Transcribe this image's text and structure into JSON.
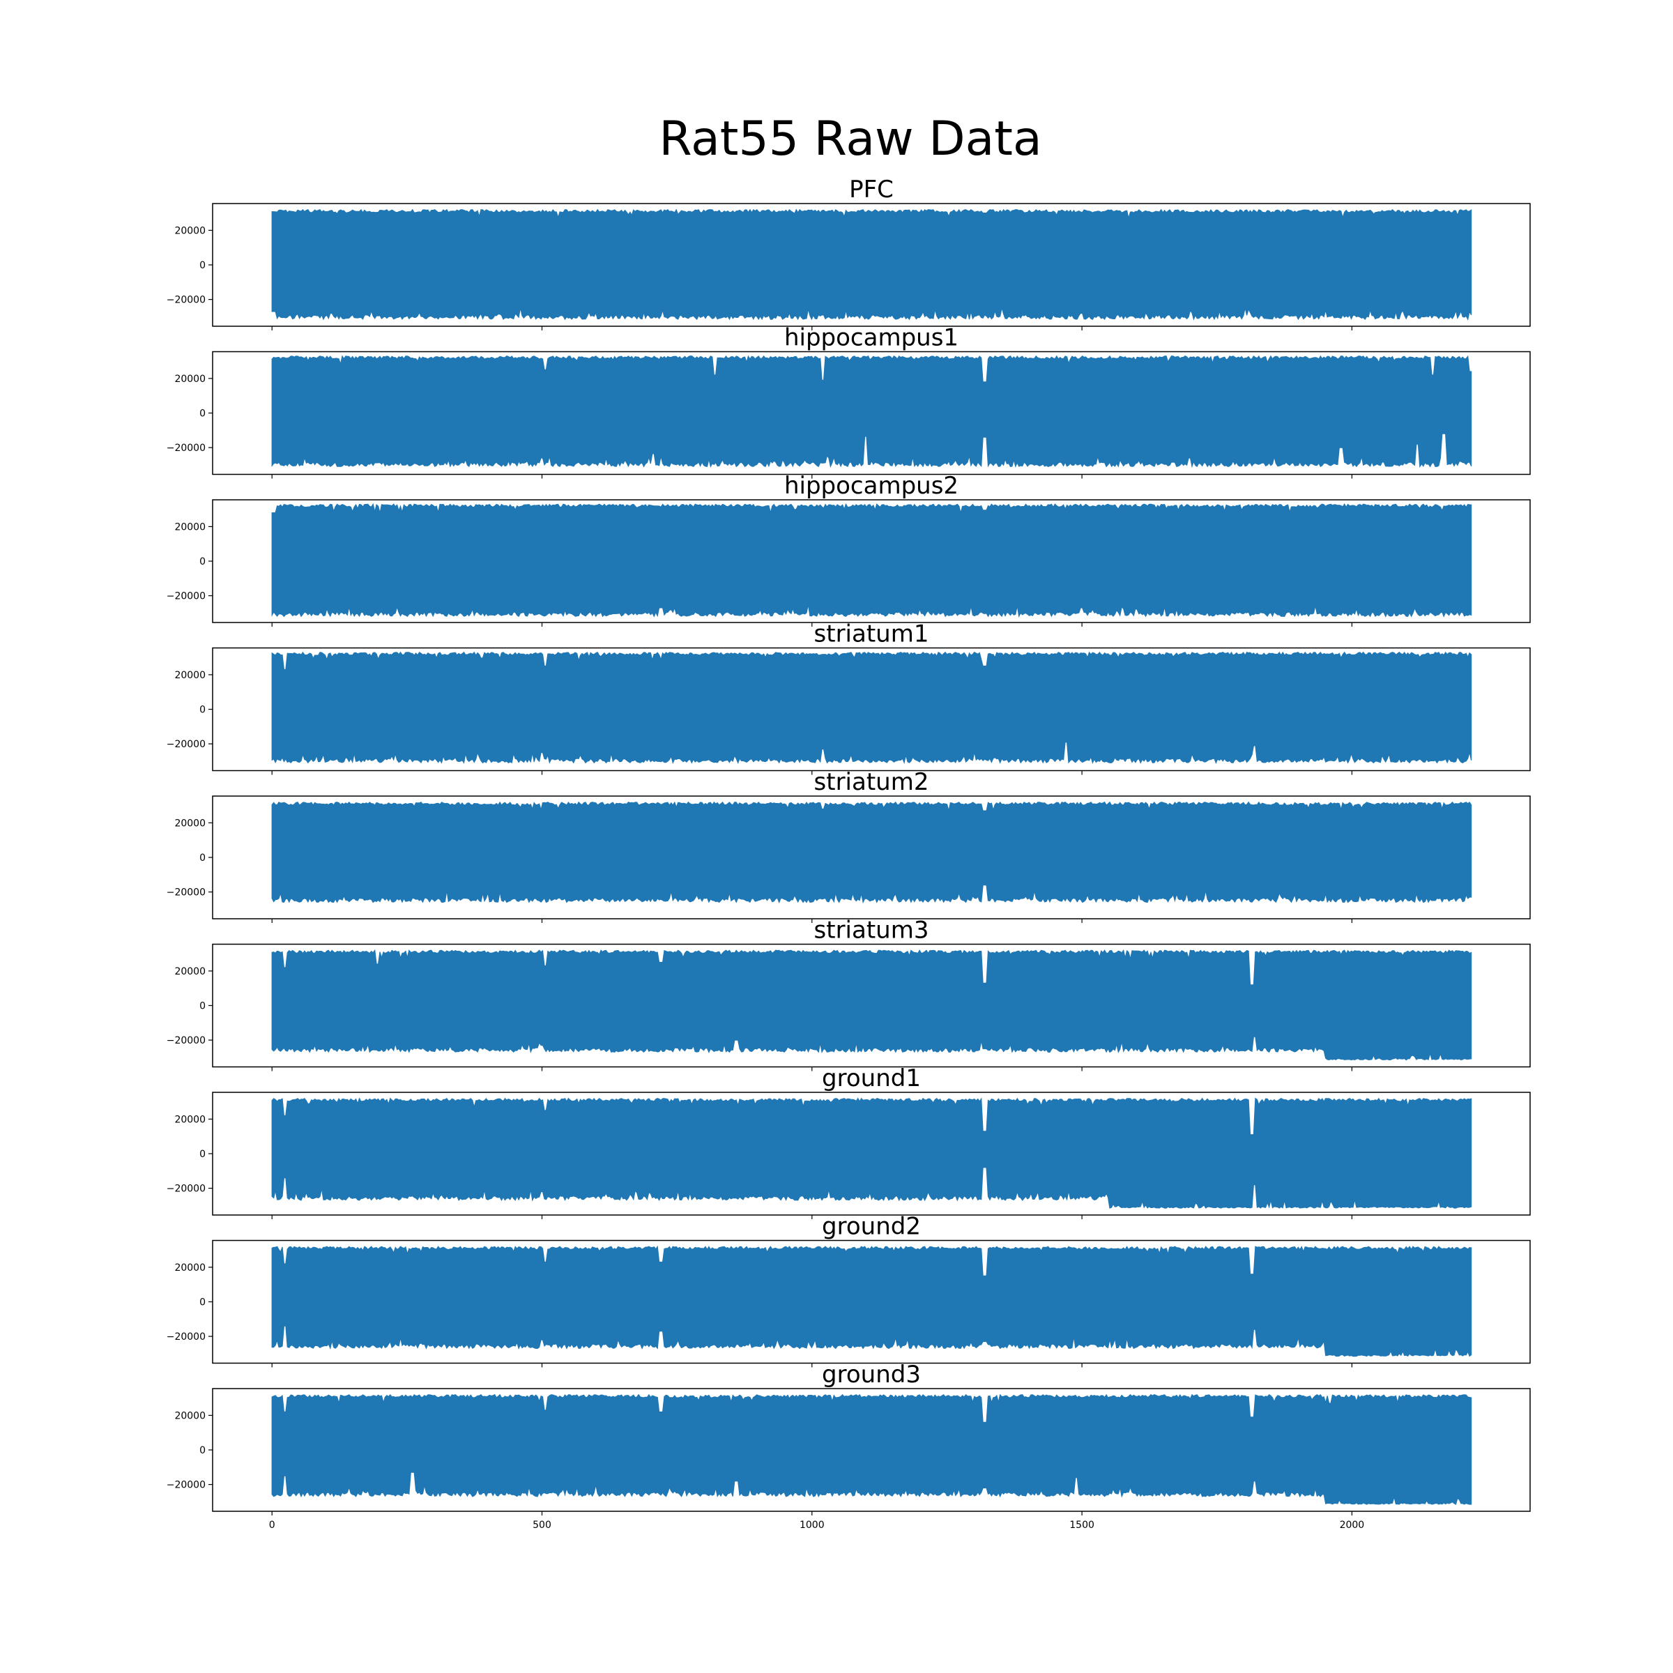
{
  "figure": {
    "suptitle": "Rat55 Raw Data"
  },
  "chart_data": {
    "type": "line",
    "series_color": "#1f77b4",
    "shared_x": true,
    "xlim": [
      -110,
      2330
    ],
    "x_range_data": [
      0,
      2221
    ],
    "x_ticks": [
      0,
      500,
      1000,
      1500,
      2000
    ],
    "x_tick_labels": [
      "0",
      "500",
      "1000",
      "1500",
      "2000"
    ],
    "ylim": [
      -35500,
      35500
    ],
    "y_ticks": [
      -20000,
      0,
      20000
    ],
    "y_tick_labels": [
      "−20000",
      "0",
      "20000"
    ],
    "grid": false,
    "panels": [
      {
        "title": "PFC",
        "upper": 32000,
        "lower": -31500,
        "dips": [
          [
            3,
            -27000
          ],
          [
            110,
            -28000
          ],
          [
            420,
            -28500
          ],
          [
            1020,
            -29000
          ],
          [
            1500,
            -28000
          ],
          [
            1810,
            -27500
          ],
          [
            2200,
            -29000
          ]
        ],
        "spikes": [
          [
            1320,
            30000
          ]
        ]
      },
      {
        "title": "hippocampus1",
        "upper": 33000,
        "lower": -31000,
        "dips": [
          [
            500,
            -26000
          ],
          [
            705,
            -23500
          ],
          [
            1100,
            -13500
          ],
          [
            1320,
            -14000
          ],
          [
            1700,
            -26000
          ],
          [
            1980,
            -20000
          ],
          [
            2120,
            -18000
          ],
          [
            2170,
            -12000
          ],
          [
            2200,
            -28000
          ],
          [
            2221,
            -33000
          ]
        ],
        "spikes": [
          [
            505,
            25000
          ],
          [
            820,
            22000
          ],
          [
            1020,
            19000
          ],
          [
            1320,
            18000
          ],
          [
            2150,
            22000
          ],
          [
            2221,
            24000
          ]
        ]
      },
      {
        "title": "hippocampus2",
        "upper": 33000,
        "lower": -32000,
        "dips": [
          [
            720,
            -27000
          ],
          [
            1500,
            -27000
          ]
        ],
        "spikes": [
          [
            3,
            28000
          ],
          [
            1320,
            29500
          ]
        ]
      },
      {
        "title": "striatum1",
        "upper": 33000,
        "lower": -31000,
        "dips": [
          [
            500,
            -25000
          ],
          [
            1020,
            -23000
          ],
          [
            1470,
            -19000
          ],
          [
            1820,
            -21000
          ]
        ],
        "spikes": [
          [
            25,
            23000
          ],
          [
            505,
            25000
          ],
          [
            1320,
            25000
          ]
        ]
      },
      {
        "title": "striatum2",
        "upper": 32000,
        "lower": -26000,
        "dips": [
          [
            1320,
            -16000
          ],
          [
            1660,
            -26000
          ],
          [
            2221,
            -23000
          ]
        ],
        "spikes": [
          [
            1020,
            28000
          ],
          [
            1320,
            27000
          ]
        ]
      },
      {
        "title": "striatum3",
        "upper": 32000,
        "lower": -27000,
        "dips": [
          [
            500,
            -23000
          ],
          [
            860,
            -20000
          ],
          [
            1320,
            -25000
          ],
          [
            1820,
            -18000
          ]
        ],
        "spikes": [
          [
            25,
            22000
          ],
          [
            195,
            24000
          ],
          [
            505,
            23000
          ],
          [
            720,
            25000
          ],
          [
            1320,
            13000
          ],
          [
            1815,
            12000
          ]
        ],
        "low_after": 1950
      },
      {
        "title": "ground1",
        "upper": 32000,
        "lower": -27000,
        "dips": [
          [
            25,
            -14000
          ],
          [
            500,
            -22000
          ],
          [
            1320,
            -8000
          ],
          [
            1820,
            -18000
          ]
        ],
        "spikes": [
          [
            25,
            22000
          ],
          [
            505,
            25000
          ],
          [
            1320,
            13000
          ],
          [
            1815,
            11000
          ]
        ],
        "low_after": 1550
      },
      {
        "title": "ground2",
        "upper": 32000,
        "lower": -27000,
        "dips": [
          [
            25,
            -14000
          ],
          [
            500,
            -22000
          ],
          [
            720,
            -17000
          ],
          [
            1320,
            -23000
          ],
          [
            1820,
            -16000
          ]
        ],
        "spikes": [
          [
            25,
            22000
          ],
          [
            505,
            23000
          ],
          [
            720,
            23000
          ],
          [
            1320,
            15000
          ],
          [
            1815,
            16000
          ]
        ],
        "low_after": 1950
      },
      {
        "title": "ground3",
        "upper": 32000,
        "lower": -27000,
        "dips": [
          [
            25,
            -15000
          ],
          [
            260,
            -13000
          ],
          [
            860,
            -18000
          ],
          [
            1320,
            -22000
          ],
          [
            1490,
            -16000
          ],
          [
            1820,
            -18000
          ]
        ],
        "spikes": [
          [
            25,
            22000
          ],
          [
            505,
            23000
          ],
          [
            720,
            22000
          ],
          [
            1320,
            16000
          ],
          [
            1815,
            19000
          ],
          [
            1960,
            27000
          ]
        ],
        "low_after": 1950
      }
    ]
  }
}
